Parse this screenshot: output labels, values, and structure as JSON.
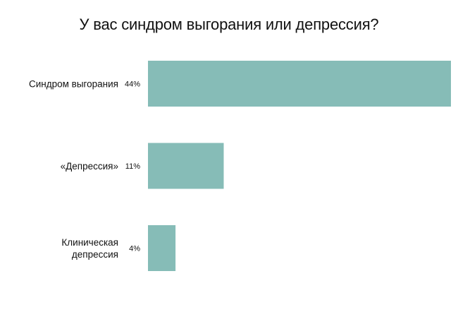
{
  "chart_data": {
    "type": "bar",
    "orientation": "horizontal",
    "title": "У вас синдром выгорания или депрессия?",
    "categories": [
      "Синдром выгорания",
      "«Депрессия»",
      "Клиническая депрессия"
    ],
    "category_lines": [
      [
        "Синдром выгорания"
      ],
      [
        "«Депрессия»"
      ],
      [
        "Клиническая",
        "депрессия"
      ]
    ],
    "values": [
      44,
      11,
      4
    ],
    "value_labels": [
      "44%",
      "11%",
      "4%"
    ],
    "xlim": [
      0,
      44
    ],
    "grid": false,
    "legend": "none",
    "bar_color": "#86bcb7"
  }
}
